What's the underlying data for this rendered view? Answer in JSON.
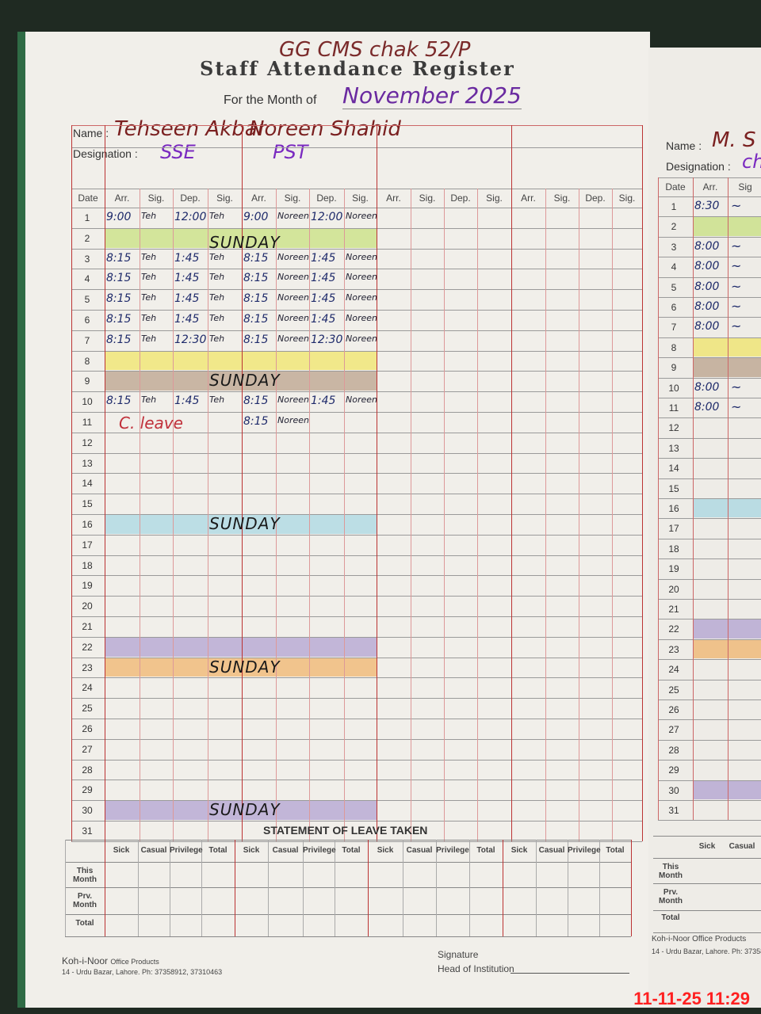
{
  "register": {
    "school": "GG CMS chak 52/P",
    "title": "Staff Attendance Register",
    "month_label": "For the Month of",
    "month_value": "November 2025",
    "name_label": "Name :",
    "designation_label": "Designation :",
    "column_headers": [
      "Date",
      "Arr.",
      "Sig.",
      "Dep.",
      "Sig.",
      "Arr.",
      "Sig.",
      "Dep.",
      "Sig.",
      "Arr.",
      "Sig.",
      "Dep.",
      "Sig.",
      "Arr.",
      "Sig.",
      "Dep.",
      "Sig."
    ],
    "staff": [
      {
        "name": "Tehseen Akbar",
        "designation": "SSE"
      },
      {
        "name": "Noreen Shahid",
        "designation": "PST"
      },
      {
        "name": "",
        "designation": ""
      },
      {
        "name": "",
        "designation": ""
      }
    ],
    "sunday_label": "SUNDAY",
    "sundays": [
      2,
      9,
      16,
      23,
      30
    ],
    "highlights": [
      {
        "day": 2,
        "color": "#b9dc5a"
      },
      {
        "day": 8,
        "color": "#f0e23a"
      },
      {
        "day": 9,
        "color": "#a8876a"
      },
      {
        "day": 16,
        "color": "#8fd0e0"
      },
      {
        "day": 22,
        "color": "#9a86c8"
      },
      {
        "day": 23,
        "color": "#f0a040"
      },
      {
        "day": 30,
        "color": "#9a86c8"
      }
    ],
    "entries": [
      {
        "day": 1,
        "cells": [
          "9:00",
          "Teh",
          "12:00",
          "Teh",
          "9:00",
          "Noreen",
          "12:00",
          "Noreen"
        ]
      },
      {
        "day": 3,
        "cells": [
          "8:15",
          "Teh",
          "1:45",
          "Teh",
          "8:15",
          "Noreen",
          "1:45",
          "Noreen"
        ]
      },
      {
        "day": 4,
        "cells": [
          "8:15",
          "Teh",
          "1:45",
          "Teh",
          "8:15",
          "Noreen",
          "1:45",
          "Noreen"
        ]
      },
      {
        "day": 5,
        "cells": [
          "8:15",
          "Teh",
          "1:45",
          "Teh",
          "8:15",
          "Noreen",
          "1:45",
          "Noreen"
        ]
      },
      {
        "day": 6,
        "cells": [
          "8:15",
          "Teh",
          "1:45",
          "Teh",
          "8:15",
          "Noreen",
          "1:45",
          "Noreen"
        ]
      },
      {
        "day": 7,
        "cells": [
          "8:15",
          "Teh",
          "12:30",
          "Teh",
          "8:15",
          "Noreen",
          "12:30",
          "Noreen"
        ]
      },
      {
        "day": 10,
        "cells": [
          "8:15",
          "Teh",
          "1:45",
          "Teh",
          "8:15",
          "Noreen",
          "1:45",
          "Noreen"
        ]
      },
      {
        "day": 11,
        "cells": [
          "",
          "",
          "",
          "",
          "8:15",
          "Noreen",
          "",
          ""
        ]
      }
    ],
    "leave_note": {
      "day": 11,
      "text": "C. leave"
    },
    "leave_statement": {
      "title": "STATEMENT OF LEAVE TAKEN",
      "columns": [
        "Sick",
        "Casual",
        "Privilege",
        "Total"
      ],
      "rows": [
        "This Month",
        "Prv. Month",
        "Total"
      ]
    },
    "publisher": {
      "name": "Koh-i-Noor",
      "tagline": "Office Products",
      "address": "14 - Urdu Bazar, Lahore. Ph: 37358912, 37310463"
    },
    "signature_label": "Signature",
    "head_label": "Head of Institution"
  },
  "right_page": {
    "name": "M. S",
    "designation": "ch",
    "headers": [
      "Date",
      "Arr.",
      "Sig"
    ],
    "entries": [
      {
        "day": 1,
        "arr": "8:30"
      },
      {
        "day": 3,
        "arr": "8:00"
      },
      {
        "day": 4,
        "arr": "8:00"
      },
      {
        "day": 5,
        "arr": "8:00"
      },
      {
        "day": 6,
        "arr": "8:00"
      },
      {
        "day": 7,
        "arr": "8:00"
      },
      {
        "day": 10,
        "arr": "8:00"
      },
      {
        "day": 11,
        "arr": "8:00"
      }
    ],
    "leave_columns": [
      "Sick",
      "Casual"
    ],
    "leave_rows": [
      "This Month",
      "Prv. Month",
      "Total"
    ],
    "publisher": "Koh-i-Noor Office Products",
    "address": "14 - Urdu Bazar, Lahore. Ph: 37358"
  },
  "timestamp": "11-11-25 11:29"
}
